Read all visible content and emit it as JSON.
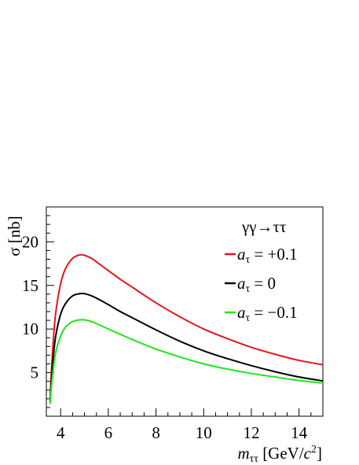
{
  "chart_data": {
    "type": "line",
    "title": "",
    "xlabel": "mττ [GeV/c2]",
    "ylabel": "σ [nb]",
    "xlim": [
      3.4,
      15
    ],
    "ylim": [
      0,
      24
    ],
    "x_ticks": [
      4,
      6,
      8,
      10,
      12,
      14
    ],
    "y_ticks": [
      5,
      10,
      15,
      20
    ],
    "grid": false,
    "legend": {
      "placement": "top-right",
      "header": "γγ→ττ",
      "entries": [
        {
          "symbol": "aτ",
          "value": "= +0.1",
          "color": "#e8141b"
        },
        {
          "symbol": "aτ",
          "value": "= 0",
          "color": "#000000"
        },
        {
          "symbol": "aτ",
          "value": "= −0.1",
          "color": "#1fe61a"
        }
      ]
    },
    "x": [
      3.56,
      3.6,
      3.7,
      3.8,
      4.0,
      4.2,
      4.5,
      4.8,
      5.0,
      5.3,
      5.6,
      6.0,
      6.5,
      7.0,
      8.0,
      9.0,
      10.0,
      11.0,
      12.0,
      13.0,
      14.0,
      15.0
    ],
    "series": [
      {
        "name": "aτ = +0.1",
        "color": "#e8141b",
        "values": [
          1.8,
          4.5,
          9.0,
          12.0,
          15.2,
          16.9,
          18.1,
          18.5,
          18.45,
          18.1,
          17.5,
          16.7,
          15.7,
          14.8,
          13.0,
          11.4,
          10.0,
          8.9,
          7.9,
          7.1,
          6.4,
          5.9
        ]
      },
      {
        "name": "aτ = 0",
        "color": "#000000",
        "values": [
          1.6,
          3.6,
          7.0,
          9.3,
          11.7,
          12.9,
          13.8,
          14.05,
          14.05,
          13.8,
          13.4,
          12.8,
          12.0,
          11.3,
          9.9,
          8.6,
          7.5,
          6.6,
          5.8,
          5.1,
          4.5,
          4.05
        ]
      },
      {
        "name": "aτ = −0.1",
        "color": "#1fe61a",
        "values": [
          1.4,
          3.0,
          5.6,
          7.4,
          9.2,
          10.2,
          10.85,
          11.05,
          11.05,
          10.85,
          10.5,
          10.0,
          9.4,
          8.8,
          7.7,
          6.8,
          6.0,
          5.4,
          4.9,
          4.5,
          4.1,
          3.8
        ]
      }
    ]
  }
}
